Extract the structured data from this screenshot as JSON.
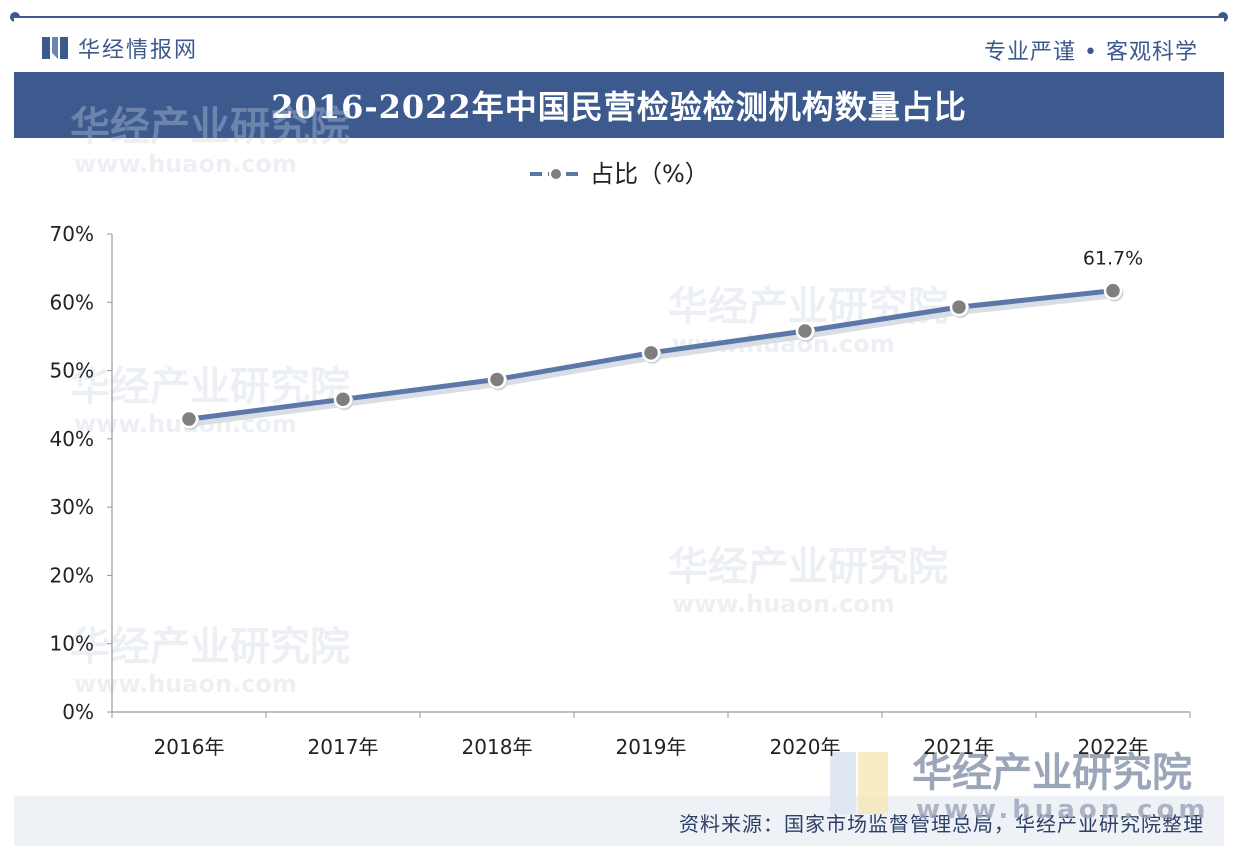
{
  "header": {
    "brand_name": "华经情报网",
    "slogan": "专业严谨 • 客观科学"
  },
  "title": "2016-2022年中国民营检验检测机构数量占比",
  "colors": {
    "accent": "#3d5a8f",
    "line": "#5b78a8",
    "point": "#7f7f7f",
    "footer": "#eef1f6"
  },
  "chart_data": {
    "type": "line",
    "categories": [
      "2016年",
      "2017年",
      "2018年",
      "2019年",
      "2020年",
      "2021年",
      "2022年"
    ],
    "series": [
      {
        "name": "占比（%）",
        "values": [
          42.9,
          45.8,
          48.7,
          52.6,
          55.8,
          59.3,
          61.7
        ]
      }
    ],
    "y_ticks": [
      "0%",
      "10%",
      "20%",
      "30%",
      "40%",
      "50%",
      "60%",
      "70%"
    ],
    "ylim": [
      0,
      70
    ],
    "data_labels": [
      {
        "index": 6,
        "text": "61.7%"
      }
    ],
    "legend": "top-center",
    "grid": false
  },
  "watermark": {
    "text": "华经产业研究院",
    "url": "www.huaon.com"
  },
  "footer": {
    "source": "资料来源：国家市场监督管理总局，华经产业研究院整理"
  }
}
